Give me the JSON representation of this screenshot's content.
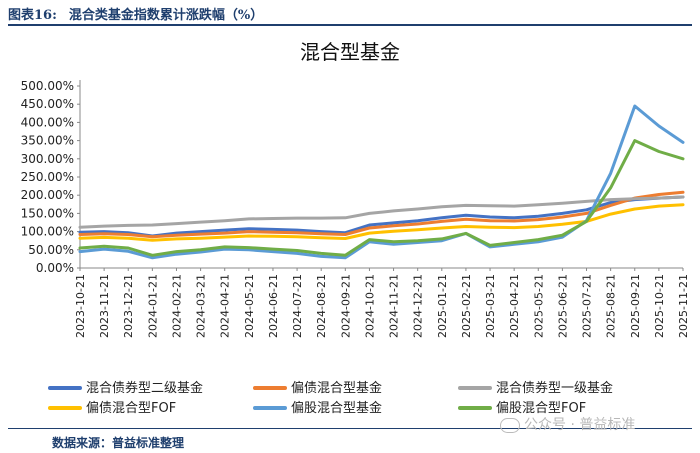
{
  "caption": {
    "label": "图表16:",
    "text": "混合类基金指数累计涨跌幅（%）"
  },
  "source_note": "数据来源：普益标准整理",
  "watermark": "公众号 · 普益标准",
  "chart_data": {
    "type": "line",
    "title": "混合型基金",
    "xlabel": "",
    "ylabel": "",
    "ylim": [
      0,
      500
    ],
    "yticks": [
      "0.00%",
      "50.00%",
      "100.00%",
      "150.00%",
      "200.00%",
      "250.00%",
      "300.00%",
      "350.00%",
      "400.00%",
      "450.00%",
      "500.00%"
    ],
    "x_labels": [
      "2023-10-21",
      "2023-11-21",
      "2023-12-21",
      "2024-01-21",
      "2024-02-21",
      "2024-03-21",
      "2024-04-21",
      "2024-05-21",
      "2024-06-21",
      "2024-07-21",
      "2024-08-21",
      "2024-09-21",
      "2024-10-21",
      "2024-11-21",
      "2024-12-21",
      "2025-01-21",
      "2025-02-21",
      "2025-03-21",
      "2025-04-21",
      "2025-05-21",
      "2025-06-21",
      "2025-07-21",
      "2025-08-21",
      "2025-09-21",
      "2025-10-21",
      "2025-11-21"
    ],
    "grid": false,
    "legend_position": "bottom",
    "series": [
      {
        "name": "混合债券型二级基金",
        "color": "#4472C4",
        "values": [
          98,
          100,
          97,
          88,
          96,
          100,
          104,
          108,
          106,
          104,
          100,
          97,
          118,
          124,
          130,
          138,
          145,
          140,
          138,
          142,
          150,
          160,
          180,
          188,
          192,
          195
        ]
      },
      {
        "name": "偏债混合型基金",
        "color": "#ED7D31",
        "values": [
          92,
          94,
          92,
          86,
          90,
          93,
          96,
          100,
          98,
          97,
          94,
          92,
          110,
          116,
          121,
          128,
          134,
          130,
          129,
          133,
          140,
          150,
          172,
          192,
          202,
          208
        ]
      },
      {
        "name": "混合债券型一级基金",
        "color": "#A5A5A5",
        "values": [
          112,
          115,
          117,
          118,
          122,
          126,
          130,
          135,
          136,
          137,
          137,
          138,
          150,
          157,
          162,
          168,
          172,
          171,
          170,
          174,
          178,
          183,
          188,
          190,
          192,
          195
        ]
      },
      {
        "name": "偏债混合型FOF",
        "color": "#FFC000",
        "values": [
          82,
          84,
          82,
          76,
          80,
          82,
          85,
          88,
          87,
          86,
          83,
          81,
          96,
          101,
          105,
          110,
          114,
          112,
          111,
          114,
          120,
          128,
          148,
          162,
          170,
          174
        ]
      },
      {
        "name": "偏股混合型基金",
        "color": "#5B9BD5",
        "values": [
          45,
          52,
          46,
          28,
          38,
          44,
          52,
          50,
          45,
          40,
          32,
          28,
          72,
          65,
          70,
          75,
          95,
          58,
          65,
          72,
          85,
          130,
          260,
          445,
          390,
          345
        ]
      },
      {
        "name": "偏股混合型FOF",
        "color": "#70AD47",
        "values": [
          55,
          60,
          55,
          35,
          45,
          50,
          58,
          56,
          52,
          48,
          40,
          35,
          78,
          72,
          75,
          80,
          95,
          62,
          70,
          78,
          90,
          128,
          220,
          350,
          320,
          300
        ]
      }
    ]
  }
}
